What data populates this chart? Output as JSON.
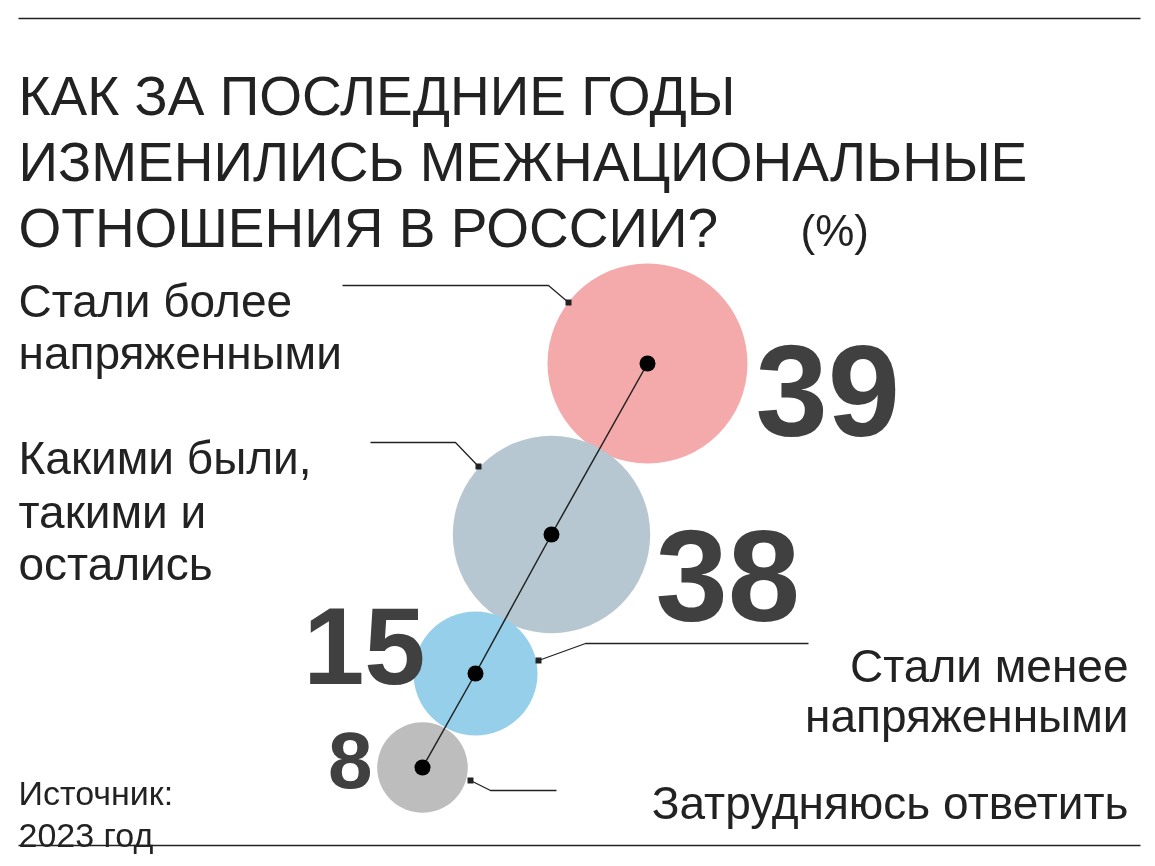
{
  "chart_data": {
    "type": "other",
    "title": "КАК ЗА ПОСЛЕДНИЕ ГОДЫ ИЗМЕНИЛИСЬ МЕЖНАЦИОНАЛЬНЫЕ ОТНОШЕНИЯ В РОССИИ?",
    "subtitle": "(%)",
    "categories": [
      "Стали более напряженными",
      "Какими были, такими и остались",
      "Стали менее напряженными",
      "Затрудняюсь ответить"
    ],
    "values": [
      39,
      38,
      15,
      8
    ],
    "colors": [
      "#f4a9ab",
      "#b6c7d2",
      "#96cfe9",
      "#bdbdbd"
    ],
    "data_labels": true,
    "annotations": [
      "Источник: 2023 год"
    ]
  }
}
